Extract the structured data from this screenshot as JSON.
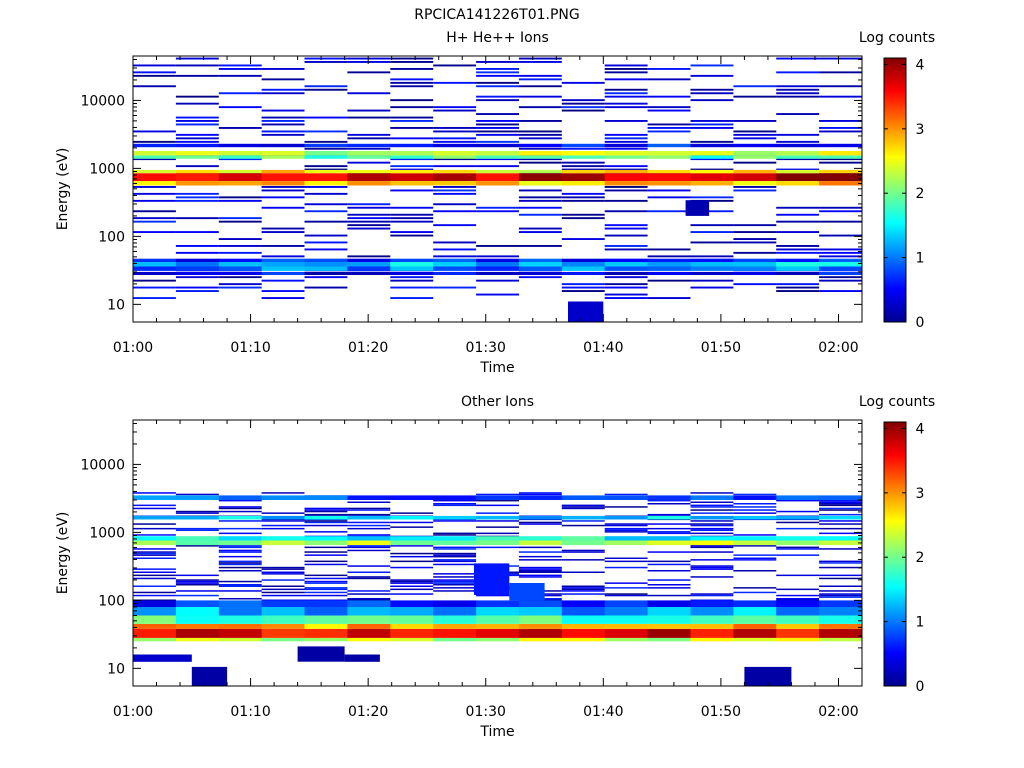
{
  "figure_title": "RPCICA141226T01.PNG",
  "chart_data": [
    {
      "type": "heatmap",
      "title": "H+ He++ Ions",
      "xlabel": "Time",
      "ylabel": "Energy (eV)",
      "y_scale": "log",
      "ylim": [
        5.5,
        45000
      ],
      "xlim": [
        "01:00",
        "02:02"
      ],
      "x_ticks": [
        "01:00",
        "01:10",
        "01:20",
        "01:30",
        "01:40",
        "01:50",
        "02:00"
      ],
      "y_ticks": [
        "10",
        "100",
        "1000",
        "10000"
      ],
      "colorbar": {
        "label": "Log counts",
        "range": [
          0,
          4.1
        ],
        "ticks": [
          "0",
          "1",
          "2",
          "3",
          "4"
        ],
        "colormap": "jet"
      },
      "grid": false,
      "bands": [
        {
          "emin": 650,
          "emax": 850,
          "level": 3.8
        },
        {
          "emin": 560,
          "emax": 650,
          "level": 2.8
        },
        {
          "emin": 850,
          "emax": 950,
          "level": 2.6
        },
        {
          "emin": 1380,
          "emax": 1550,
          "level": 1.9
        },
        {
          "emin": 1550,
          "emax": 1800,
          "level": 2.3
        },
        {
          "emin": 2050,
          "emax": 2300,
          "level": 0.6
        },
        {
          "emin": 36,
          "emax": 42,
          "level": 1.3
        },
        {
          "emin": 31,
          "emax": 36,
          "level": 1.0
        },
        {
          "emin": 42,
          "emax": 47,
          "level": 0.7
        },
        {
          "emin": 27,
          "emax": 30,
          "level": 0.5
        }
      ],
      "patches": [
        {
          "t0": "01:37",
          "t1": "01:40",
          "emin": 5.5,
          "emax": 11,
          "level": 0.3
        },
        {
          "t0": "01:47",
          "t1": "01:49",
          "emin": 200,
          "emax": 340,
          "level": 0.2
        }
      ],
      "sparse": {
        "seed": 7,
        "emin": 12,
        "emax": 45000,
        "density": 0.32,
        "max_level": 0.7
      }
    },
    {
      "type": "heatmap",
      "title": "Other Ions",
      "xlabel": "Time",
      "ylabel": "Energy (eV)",
      "y_scale": "log",
      "ylim": [
        5.5,
        45000
      ],
      "xlim": [
        "01:00",
        "02:02"
      ],
      "x_ticks": [
        "01:00",
        "01:10",
        "01:20",
        "01:30",
        "01:40",
        "01:50",
        "02:00"
      ],
      "y_ticks": [
        "10",
        "100",
        "1000",
        "10000"
      ],
      "colorbar": {
        "label": "Log counts",
        "range": [
          0,
          4.1
        ],
        "ticks": [
          "0",
          "1",
          "2",
          "3",
          "4"
        ],
        "colormap": "jet"
      },
      "grid": false,
      "bands": [
        {
          "emin": 28,
          "emax": 38,
          "level": 3.7
        },
        {
          "emin": 38,
          "emax": 45,
          "level": 2.9
        },
        {
          "emin": 25,
          "emax": 28,
          "level": 2.3
        },
        {
          "emin": 45,
          "emax": 60,
          "level": 1.9
        },
        {
          "emin": 60,
          "emax": 80,
          "level": 1.2
        },
        {
          "emin": 80,
          "emax": 100,
          "level": 0.7
        },
        {
          "emin": 650,
          "emax": 760,
          "level": 2.2
        },
        {
          "emin": 760,
          "emax": 880,
          "level": 1.6
        },
        {
          "emin": 1550,
          "emax": 1750,
          "level": 1.4
        },
        {
          "emin": 3000,
          "emax": 3500,
          "level": 0.9
        }
      ],
      "patches": [
        {
          "t0": "01:00",
          "t1": "01:05",
          "emin": 12.5,
          "emax": 16,
          "level": 0.3
        },
        {
          "t0": "01:05",
          "t1": "01:08",
          "emin": 5.5,
          "emax": 10.5,
          "level": 0.15
        },
        {
          "t0": "01:14",
          "t1": "01:18",
          "emin": 12.5,
          "emax": 21,
          "level": 0.15
        },
        {
          "t0": "01:18",
          "t1": "01:21",
          "emin": 12.5,
          "emax": 16,
          "level": 0.15
        },
        {
          "t0": "01:52",
          "t1": "01:56",
          "emin": 5.5,
          "emax": 10.5,
          "level": 0.15
        },
        {
          "t0": "01:29",
          "t1": "01:32",
          "emin": 120,
          "emax": 350,
          "level": 0.6
        },
        {
          "t0": "01:32",
          "t1": "01:35",
          "emin": 100,
          "emax": 180,
          "level": 0.8
        }
      ],
      "sparse": {
        "seed": 19,
        "emin": 100,
        "emax": 4000,
        "density": 0.3,
        "max_level": 0.7
      }
    }
  ]
}
